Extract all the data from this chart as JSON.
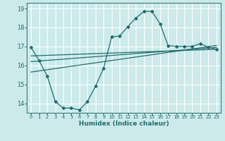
{
  "xlabel": "Humidex (Indice chaleur)",
  "bg_color": "#cceaea",
  "grid_color": "#ffffff",
  "line_color": "#1e6e6e",
  "xlim": [
    -0.5,
    23.5
  ],
  "ylim": [
    13.5,
    19.3
  ],
  "yticks": [
    14,
    15,
    16,
    17,
    18,
    19
  ],
  "xticks": [
    0,
    1,
    2,
    3,
    4,
    5,
    6,
    7,
    8,
    9,
    10,
    11,
    12,
    13,
    14,
    15,
    16,
    17,
    18,
    19,
    20,
    21,
    22,
    23
  ],
  "curve_x": [
    0,
    1,
    2,
    3,
    4,
    5,
    6,
    7,
    8,
    9,
    10,
    11,
    12,
    13,
    14,
    15,
    16,
    17,
    18,
    19,
    20,
    21,
    22,
    23
  ],
  "curve_y": [
    16.95,
    16.25,
    15.45,
    14.1,
    13.75,
    13.75,
    13.65,
    14.1,
    14.9,
    15.85,
    17.5,
    17.55,
    18.05,
    18.5,
    18.85,
    18.85,
    18.2,
    17.05,
    17.0,
    17.0,
    17.0,
    17.15,
    16.95,
    16.85
  ],
  "line1_x": [
    0,
    23
  ],
  "line1_y": [
    16.5,
    16.85
  ],
  "line2_x": [
    0,
    23
  ],
  "line2_y": [
    16.2,
    16.95
  ],
  "line3_x": [
    0,
    23
  ],
  "line3_y": [
    15.65,
    17.05
  ]
}
